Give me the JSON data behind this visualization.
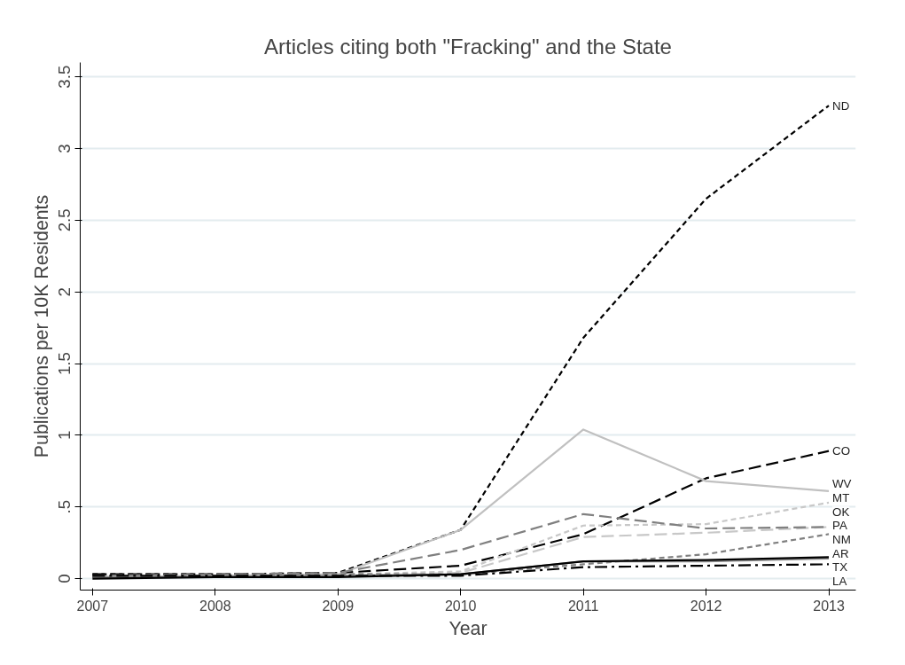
{
  "chart_data": {
    "type": "line",
    "title": "Articles citing both \"Fracking\" and the State",
    "xlabel": "Year",
    "ylabel": "Publications per 10K Residents",
    "x": [
      2007,
      2008,
      2009,
      2010,
      2011,
      2012,
      2013
    ],
    "xlim": [
      2006.9,
      2013.22
    ],
    "xticks": [
      2007,
      2008,
      2009,
      2010,
      2011,
      2012,
      2013
    ],
    "ylim": [
      -0.08,
      3.6
    ],
    "yticks": [
      0,
      {
        "value": 0.5,
        "label": ".5"
      },
      1,
      1.5,
      2,
      2.5,
      3,
      3.5
    ],
    "grid": "y",
    "series": [
      {
        "name": "ND",
        "color": "#000000",
        "line_style": "dashed",
        "values": [
          0.03,
          0.03,
          0.04,
          0.34,
          1.68,
          2.65,
          3.3
        ]
      },
      {
        "name": "CO",
        "color": "#000000",
        "line_style": "longdash",
        "values": [
          0.03,
          0.03,
          0.04,
          0.09,
          0.31,
          0.7,
          0.89
        ]
      },
      {
        "name": "WV",
        "color": "#c0c0c0",
        "line_style": "solid",
        "values": [
          0.01,
          0.02,
          0.03,
          0.34,
          1.04,
          0.68,
          0.61
        ]
      },
      {
        "name": "MT",
        "color": "#c8c8c8",
        "line_style": "dashed",
        "values": [
          0.01,
          0.02,
          0.03,
          0.05,
          0.37,
          0.38,
          0.53
        ]
      },
      {
        "name": "OK",
        "color": "#c8c8c8",
        "line_style": "longdash",
        "values": [
          0.01,
          0.01,
          0.02,
          0.04,
          0.29,
          0.32,
          0.36
        ]
      },
      {
        "name": "PA",
        "color": "#808080",
        "line_style": "longdash",
        "values": [
          0.02,
          0.03,
          0.04,
          0.2,
          0.45,
          0.35,
          0.36
        ]
      },
      {
        "name": "NM",
        "color": "#808080",
        "line_style": "dashed",
        "values": [
          0.01,
          0.02,
          0.03,
          0.03,
          0.1,
          0.17,
          0.31
        ]
      },
      {
        "name": "TX",
        "color": "#909090",
        "line_style": "solid",
        "values": [
          0.01,
          0.01,
          0.02,
          0.03,
          0.12,
          0.12,
          0.14
        ]
      },
      {
        "name": "AR",
        "color": "#000000",
        "line_style": "solid",
        "values": [
          0.0,
          0.01,
          0.01,
          0.03,
          0.12,
          0.13,
          0.15
        ]
      },
      {
        "name": "LA",
        "color": "#000000",
        "line_style": "dashdot",
        "values": [
          0.02,
          0.02,
          0.02,
          0.02,
          0.08,
          0.09,
          0.1
        ]
      }
    ]
  }
}
